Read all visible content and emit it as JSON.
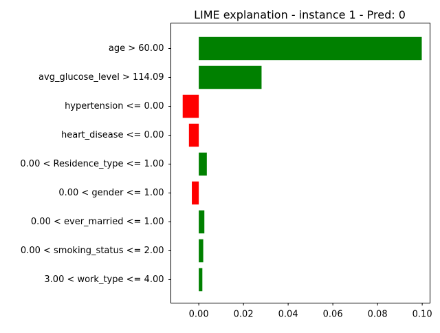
{
  "chart_data": {
    "type": "bar",
    "orientation": "horizontal",
    "title": "LIME explanation - instance 1 - Pred: 0",
    "xlabel": "",
    "ylabel": "",
    "xlim": [
      -0.0125,
      0.1035
    ],
    "xticks": [
      0.0,
      0.02,
      0.04,
      0.06,
      0.08,
      0.1
    ],
    "xtick_labels": [
      "0.00",
      "0.02",
      "0.04",
      "0.06",
      "0.08",
      "0.10"
    ],
    "grid": false,
    "legend": "none",
    "positive_color": "#008000",
    "negative_color": "#ff0000",
    "categories": [
      "age > 60.00",
      "avg_glucose_level > 114.09",
      "hypertension <= 0.00",
      "heart_disease <= 0.00",
      "0.00 < Residence_type <= 1.00",
      "0.00 < gender <= 1.00",
      "0.00 < ever_married <= 1.00",
      "0.00 < smoking_status <= 2.00",
      "3.00 < work_type <= 4.00"
    ],
    "values": [
      0.0998,
      0.0281,
      -0.0072,
      -0.0044,
      0.0036,
      -0.0031,
      0.0025,
      0.002,
      0.0016
    ]
  }
}
